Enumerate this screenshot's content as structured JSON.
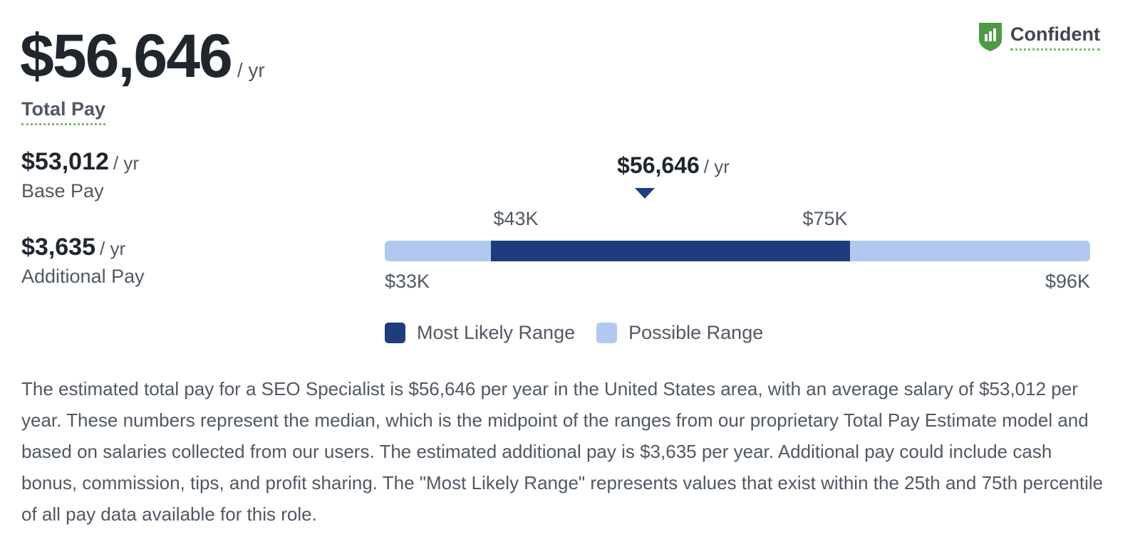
{
  "total": {
    "amount": "$56,646",
    "unit": "/ yr",
    "label": "Total Pay"
  },
  "confidence": {
    "icon": "shield-bar-chart-icon",
    "label": "Confident",
    "color": "#4e9a45"
  },
  "base_pay": {
    "amount": "$53,012",
    "unit": "/ yr",
    "label": "Base Pay"
  },
  "additional_pay": {
    "amount": "$3,635",
    "unit": "/ yr",
    "label": "Additional Pay"
  },
  "range": {
    "median_amount": "$56,646",
    "median_unit": "/ yr",
    "likely_low_label": "$43K",
    "likely_high_label": "$75K",
    "possible_low_label": "$33K",
    "possible_high_label": "$96K"
  },
  "legend": {
    "most_likely": "Most Likely Range",
    "possible": "Possible Range"
  },
  "colors": {
    "most_likely": "#1f3d7a",
    "possible": "#b1c8f0",
    "dotted_underline": "#7fb474"
  },
  "description": "The estimated total pay for a SEO Specialist is $56,646 per year in the United States area, with an average salary of $53,012 per year. These numbers represent the median, which is the midpoint of the ranges from our proprietary Total Pay Estimate model and based on salaries collected from our users. The estimated additional pay is $3,635 per year. Additional pay could include cash bonus, commission, tips, and profit sharing. The \"Most Likely Range\" represents values that exist within the 25th and 75th percentile of all pay data available for this role.",
  "chart_data": {
    "type": "range",
    "title": "Total Pay Range",
    "unit": "USD per year",
    "possible_range": [
      33000,
      96000
    ],
    "most_likely_range": [
      43000,
      75000
    ],
    "median": 56646,
    "tick_labels": [
      "$33K",
      "$43K",
      "$75K",
      "$96K"
    ],
    "marker_label": "$56,646 / yr",
    "legend": [
      "Most Likely Range",
      "Possible Range"
    ],
    "legend_position": "bottom",
    "grid": false,
    "series": [
      {
        "name": "Possible Range",
        "values": [
          33000,
          96000
        ],
        "color": "#b1c8f0"
      },
      {
        "name": "Most Likely Range",
        "values": [
          43000,
          75000
        ],
        "color": "#1f3d7a"
      }
    ],
    "summary": {
      "total_pay": 56646,
      "base_pay": 53012,
      "additional_pay": 3635
    }
  }
}
